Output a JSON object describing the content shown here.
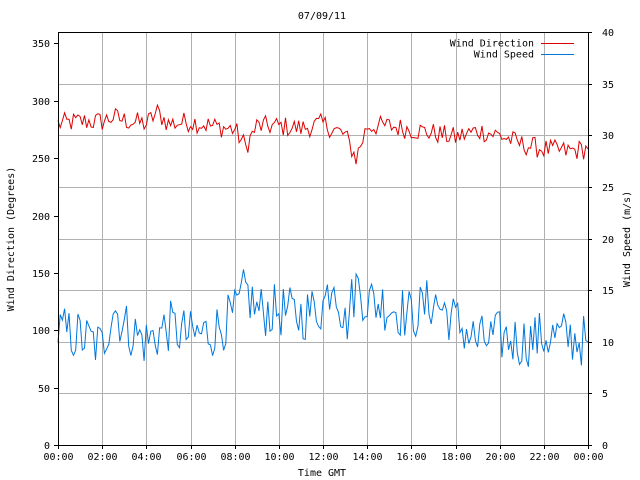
{
  "chart_data": {
    "type": "line",
    "title": "07/09/11",
    "xlabel": "Time GMT",
    "ylabel_left": "Wind Direction (Degrees)",
    "ylabel_right": "Wind Speed (m/s)",
    "x_ticks": [
      "00:00",
      "02:00",
      "04:00",
      "06:00",
      "08:00",
      "10:00",
      "12:00",
      "14:00",
      "16:00",
      "18:00",
      "20:00",
      "22:00",
      "00:00"
    ],
    "x_range_hours": [
      0,
      24
    ],
    "ylim_left": [
      0,
      360
    ],
    "yticks_left": [
      0,
      50,
      100,
      150,
      200,
      250,
      300,
      350
    ],
    "ylim_right": [
      0,
      40
    ],
    "yticks_right": [
      0,
      5,
      10,
      15,
      20,
      25,
      30,
      35,
      40
    ],
    "grid": true,
    "legend_position": "top-right",
    "series": [
      {
        "name": "Wind Direction",
        "axis": "left",
        "color": "#dd0000",
        "x_hours": [
          0,
          1,
          2,
          2.5,
          3,
          4,
          4.5,
          5,
          6,
          7,
          8,
          8.5,
          9,
          10,
          11,
          12,
          13,
          13.5,
          14,
          15,
          16,
          17,
          18,
          19,
          20,
          21,
          22,
          23,
          24
        ],
        "values": [
          280,
          282,
          282,
          286,
          283,
          280,
          290,
          280,
          282,
          278,
          275,
          260,
          278,
          278,
          276,
          280,
          270,
          250,
          278,
          278,
          275,
          272,
          268,
          274,
          270,
          262,
          258,
          256,
          258
        ]
      },
      {
        "name": "Wind Speed",
        "axis": "right",
        "color": "#0077dd",
        "x_hours": [
          0,
          1,
          2,
          2.5,
          3,
          4,
          5,
          6,
          7,
          8,
          8.5,
          9,
          10,
          11,
          12,
          12.5,
          13,
          13.5,
          14,
          15,
          16,
          17,
          18,
          19,
          20,
          21,
          22,
          23,
          24
        ],
        "values": [
          11.0,
          10.5,
          9.5,
          13.5,
          11.5,
          10.0,
          11.5,
          10.5,
          11.0,
          12.5,
          15.0,
          13.0,
          13.0,
          12.5,
          13.5,
          16.5,
          11.5,
          15.5,
          14.0,
          13.5,
          12.5,
          14.0,
          12.0,
          10.0,
          10.5,
          10.0,
          10.5,
          10.5,
          10.0
        ]
      }
    ]
  }
}
